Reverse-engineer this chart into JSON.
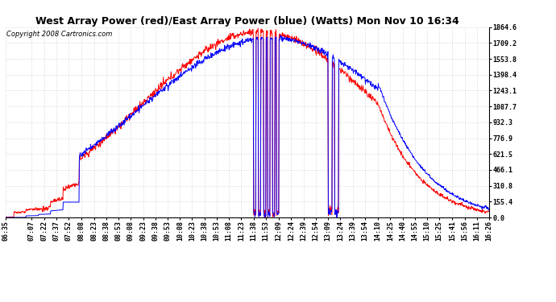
{
  "title": "West Array Power (red)/East Array Power (blue) (Watts) Mon Nov 10 16:34",
  "copyright": "Copyright 2008 Cartronics.com",
  "background_color": "#ffffff",
  "plot_bg_color": "#ffffff",
  "grid_color": "#888888",
  "red_color": "#ff0000",
  "blue_color": "#0000ff",
  "ylim": [
    0.0,
    1864.6
  ],
  "yticks": [
    0.0,
    155.4,
    310.8,
    466.1,
    621.5,
    776.9,
    932.3,
    1087.7,
    1243.1,
    1398.4,
    1553.8,
    1709.2,
    1864.6
  ],
  "title_fontsize": 9,
  "copyright_fontsize": 6,
  "tick_fontsize": 6,
  "x_labels": [
    "06:35",
    "07:07",
    "07:22",
    "07:37",
    "07:52",
    "08:08",
    "08:23",
    "08:38",
    "08:53",
    "09:08",
    "09:23",
    "09:38",
    "09:53",
    "10:08",
    "10:23",
    "10:38",
    "10:53",
    "11:08",
    "11:23",
    "11:38",
    "11:53",
    "12:09",
    "12:24",
    "12:39",
    "12:54",
    "13:09",
    "13:24",
    "13:39",
    "13:54",
    "14:10",
    "14:25",
    "14:40",
    "14:55",
    "15:10",
    "15:25",
    "15:41",
    "15:56",
    "16:11",
    "16:26"
  ]
}
